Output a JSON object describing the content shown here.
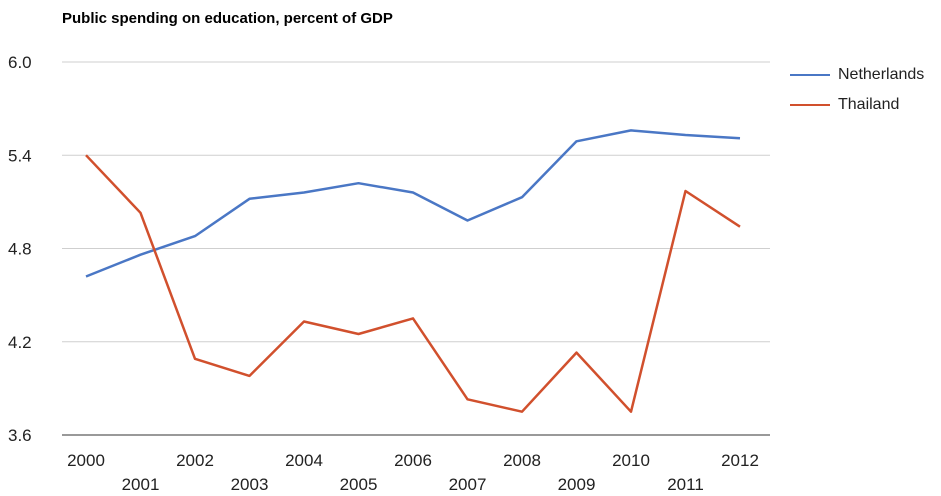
{
  "chart_data": {
    "type": "line",
    "title": "Public spending on education, percent of GDP",
    "xlabel": "",
    "ylabel": "",
    "x": [
      "2000",
      "2001",
      "2002",
      "2003",
      "2004",
      "2005",
      "2006",
      "2007",
      "2008",
      "2009",
      "2010",
      "2011",
      "2012"
    ],
    "ylim": [
      3.6,
      6.0
    ],
    "yticks": [
      "3.6",
      "4.2",
      "4.8",
      "5.4",
      "6.0"
    ],
    "grid": true,
    "legend_position": "right",
    "series": [
      {
        "name": "Netherlands",
        "color": "#4a77c5",
        "values": [
          4.62,
          4.76,
          4.88,
          5.12,
          5.16,
          5.22,
          5.16,
          4.98,
          5.13,
          5.49,
          5.56,
          5.53,
          5.51
        ]
      },
      {
        "name": "Thailand",
        "color": "#d1502d",
        "values": [
          5.4,
          5.03,
          4.09,
          3.98,
          4.33,
          4.25,
          4.35,
          3.83,
          3.75,
          4.13,
          3.75,
          5.17,
          4.94
        ]
      }
    ]
  }
}
